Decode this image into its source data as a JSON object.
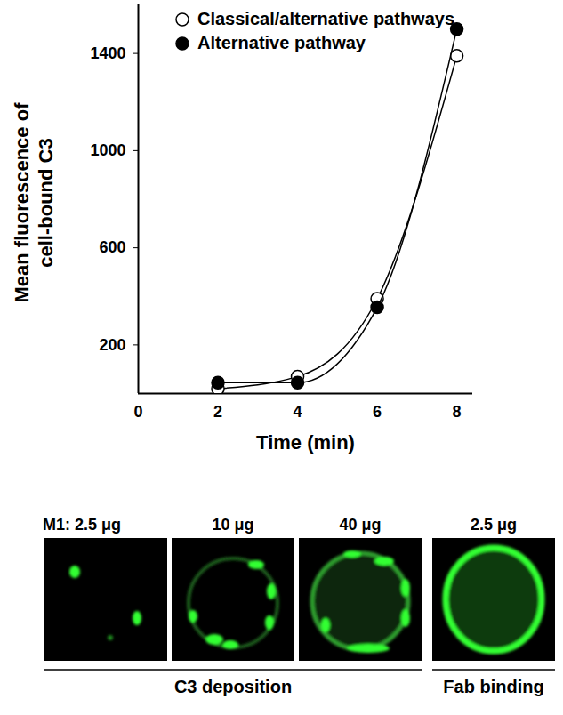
{
  "chart_data": {
    "type": "line",
    "x_label": "Time (min)",
    "y_label": "Mean fluorescence of cell-bound C3",
    "x": [
      2,
      4,
      6,
      8
    ],
    "series": [
      {
        "name": "Classical/alternative pathways",
        "color": "#000000",
        "marker": "circle-open",
        "values": [
          20,
          70,
          390,
          1390
        ]
      },
      {
        "name": "Alternative pathway",
        "color": "#000000",
        "marker": "circle",
        "values": [
          45,
          45,
          355,
          1500
        ]
      }
    ],
    "xlim": [
      0,
      8.4
    ],
    "xticks": [
      0,
      2,
      4,
      6,
      8
    ],
    "ylim": [
      0,
      1600
    ],
    "yticks": [
      200,
      600,
      1000,
      1400
    ],
    "grid": false,
    "legend": "top-left"
  },
  "image_panels": [
    {
      "label": "M1: 2.5 μg",
      "group": "C3 deposition"
    },
    {
      "label": "10 μg",
      "group": "C3 deposition"
    },
    {
      "label": "40 μg",
      "group": "C3 deposition"
    },
    {
      "label": "2.5 μg",
      "group": "Fab binding"
    }
  ]
}
